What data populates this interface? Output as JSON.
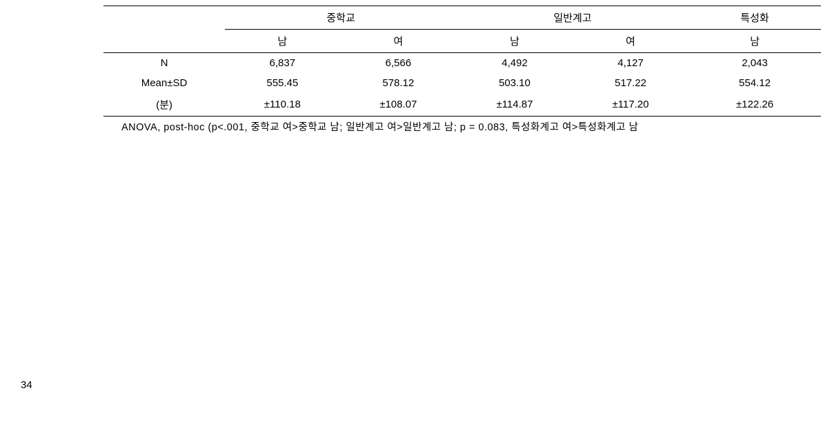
{
  "table": {
    "groups": [
      "중학교",
      "일반계고",
      "특성화"
    ],
    "subheaders": [
      "남",
      "여",
      "남",
      "여",
      "남"
    ],
    "rows": {
      "n_label": "N",
      "n": [
        "6,837",
        "6,566",
        "4,492",
        "4,127",
        "2,043"
      ],
      "mean_label": "Mean±SD",
      "mean": [
        "555.45",
        "578.12",
        "503.10",
        "517.22",
        "554.12"
      ],
      "sd_unit": "(분)",
      "sd": [
        "±110.18",
        "±108.07",
        "±114.87",
        "±117.20",
        "±122.26"
      ]
    },
    "footnote": "ANOVA, post-hoc (p<.001, 중학교 여>중학교 남; 일반계고 여>일반계고 남; p = 0.083, 특성화계고 여>특성화계고 남"
  },
  "page_number": "34"
}
